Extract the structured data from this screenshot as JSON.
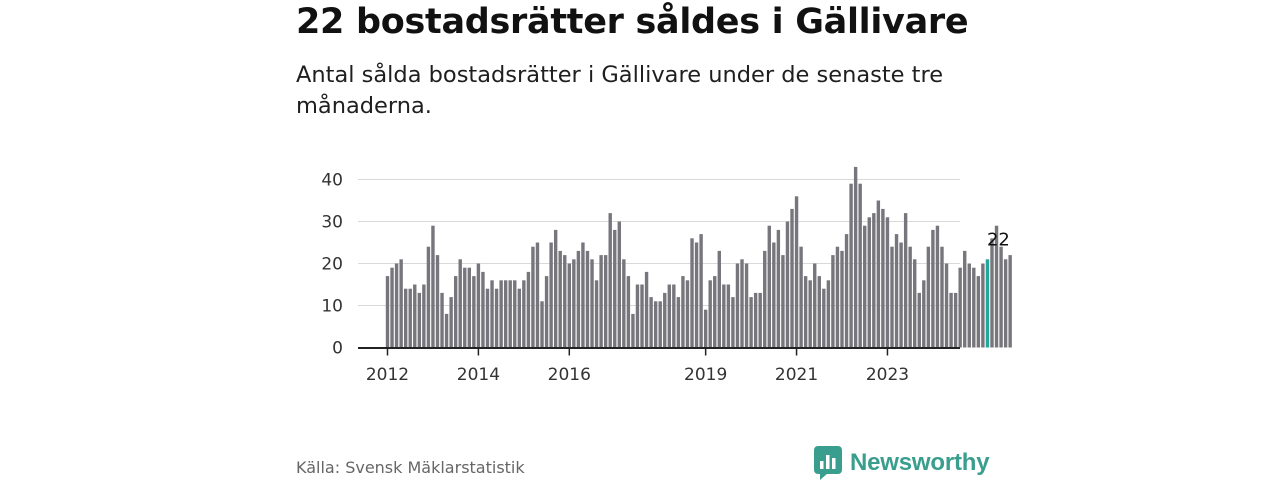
{
  "header": {
    "title": "22 bostadsrätter såldes i Gällivare",
    "subtitle": "Antal sålda bostadsrätter i Gällivare under de senaste tre månaderna."
  },
  "footer": {
    "source": "Källa: Svensk Mäklarstatistik",
    "brand": "Newsworthy",
    "brand_color": "#3a9e8e"
  },
  "colors": {
    "bar": "#77767c",
    "highlight": "#26a69a",
    "grid": "#d9d9d9",
    "axis": "#222222"
  },
  "chart_data": {
    "type": "bar",
    "title": "22 bostadsrätter såldes i Gällivare",
    "xlabel": "",
    "ylabel": "",
    "ylim": [
      0,
      45
    ],
    "yticks": [
      0,
      10,
      20,
      30,
      40
    ],
    "grid": true,
    "x_start": "2012-01",
    "x_tick_labels": [
      {
        "label": "2012",
        "index": 0
      },
      {
        "label": "2014",
        "index": 20
      },
      {
        "label": "2016",
        "index": 40
      },
      {
        "label": "2019",
        "index": 70
      },
      {
        "label": "2021",
        "index": 90
      },
      {
        "label": "2023",
        "index": 110
      }
    ],
    "values": [
      17,
      19,
      20,
      21,
      14,
      14,
      15,
      13,
      15,
      24,
      29,
      22,
      13,
      8,
      12,
      17,
      21,
      19,
      19,
      17,
      20,
      18,
      14,
      16,
      14,
      16,
      16,
      16,
      16,
      14,
      16,
      18,
      24,
      25,
      11,
      17,
      25,
      28,
      23,
      22,
      20,
      21,
      23,
      25,
      23,
      21,
      16,
      22,
      22,
      32,
      28,
      30,
      21,
      17,
      8,
      15,
      15,
      18,
      12,
      11,
      11,
      13,
      15,
      15,
      12,
      17,
      16,
      26,
      25,
      27,
      9,
      16,
      17,
      23,
      15,
      15,
      12,
      20,
      21,
      20,
      12,
      13,
      13,
      23,
      29,
      25,
      28,
      22,
      30,
      33,
      36,
      24,
      17,
      16,
      20,
      17,
      14,
      16,
      22,
      24,
      23,
      27,
      39,
      43,
      39,
      29,
      31,
      32,
      35,
      33,
      31,
      24,
      27,
      25,
      32,
      24,
      21,
      13,
      16,
      24,
      28,
      29,
      24,
      20,
      13,
      13,
      19,
      23,
      20,
      19,
      17,
      20,
      21,
      26,
      29,
      24,
      21,
      22
    ],
    "highlight_index": 132,
    "last_value_label": "22"
  }
}
